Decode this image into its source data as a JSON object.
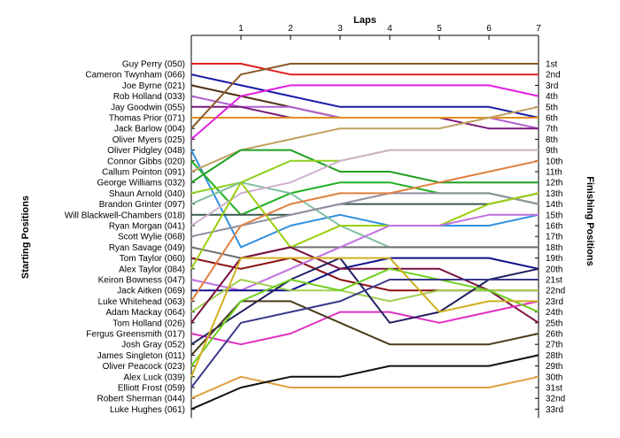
{
  "chart_data": {
    "type": "line",
    "title": "",
    "xlabel": "Laps",
    "ylabel_left": "Starting Positions",
    "ylabel_right": "Finishing Positions",
    "x": [
      0,
      1,
      2,
      3,
      4,
      5,
      6,
      7
    ],
    "x_tick_labels": [
      "1",
      "2",
      "3",
      "4",
      "5",
      "6",
      "7"
    ],
    "position_count": 33,
    "grid": false,
    "finishing_labels": [
      "1st",
      "2nd",
      "3rd",
      "4th",
      "5th",
      "6th",
      "7th",
      "8th",
      "9th",
      "10th",
      "11th",
      "12th",
      "13th",
      "14th",
      "15th",
      "16th",
      "17th",
      "18th",
      "19th",
      "20th",
      "21st",
      "22nd",
      "23rd",
      "24th",
      "25th",
      "26th",
      "27th",
      "28th",
      "29th",
      "30th",
      "31st",
      "32nd",
      "33rd"
    ],
    "series": [
      {
        "name": "Guy Perry (050)",
        "color": "#e02020",
        "values": [
          1,
          1,
          2,
          2,
          2,
          2,
          2,
          2
        ]
      },
      {
        "name": "Cameron Twynham (066)",
        "color": "#1a1aa8",
        "values": [
          2,
          3,
          4,
          5,
          5,
          5,
          5,
          6
        ]
      },
      {
        "name": "Joe Byrne (021)",
        "color": "#4d2e12",
        "values": [
          3,
          4,
          5,
          6,
          6,
          6,
          6,
          6
        ]
      },
      {
        "name": "Rob Holland (033)",
        "color": "#b060d0",
        "values": [
          4,
          5,
          5,
          6,
          6,
          6,
          6,
          7
        ]
      },
      {
        "name": "Jay Goodwin (055)",
        "color": "#7a1a7a",
        "values": [
          5,
          5,
          6,
          6,
          6,
          6,
          7,
          7
        ]
      },
      {
        "name": "Thomas Prior (071)",
        "color": "#e09020",
        "values": [
          6,
          6,
          6,
          6,
          6,
          6,
          6,
          6
        ]
      },
      {
        "name": "Jack Barlow (004)",
        "color": "#8a5a2a",
        "values": [
          7,
          2,
          1,
          1,
          1,
          1,
          1,
          1
        ]
      },
      {
        "name": "Oliver Myers (025)",
        "color": "#e020e0",
        "values": [
          8,
          4,
          3,
          3,
          3,
          3,
          3,
          4
        ]
      },
      {
        "name": "Oliver Pidgley (048)",
        "color": "#3090e0",
        "values": [
          9,
          18,
          16,
          15,
          16,
          16,
          16,
          15
        ]
      },
      {
        "name": "Connor Gibbs (020)",
        "color": "#20b020",
        "values": [
          10,
          15,
          13,
          12,
          12,
          13,
          13,
          14
        ]
      },
      {
        "name": "Callum Pointon (091)",
        "color": "#c0a060",
        "values": [
          11,
          9,
          8,
          7,
          7,
          7,
          6,
          5
        ]
      },
      {
        "name": "George Williams (032)",
        "color": "#20a020",
        "values": [
          12,
          9,
          9,
          11,
          11,
          12,
          12,
          12
        ]
      },
      {
        "name": "Shaun Arnold (040)",
        "color": "#90d020",
        "values": [
          13,
          12,
          10,
          10,
          9,
          9,
          9,
          9
        ]
      },
      {
        "name": "Brandon Grinter (097)",
        "color": "#80c0a0",
        "values": [
          14,
          12,
          13,
          16,
          18,
          18,
          18,
          18
        ]
      },
      {
        "name": "Will Blackwell-Chambers (018)",
        "color": "#3a5a50",
        "values": [
          15,
          15,
          15,
          14,
          14,
          14,
          14,
          13
        ]
      },
      {
        "name": "Ryan Morgan (041)",
        "color": "#d0b0d0",
        "values": [
          16,
          13,
          12,
          10,
          9,
          9,
          9,
          9
        ]
      },
      {
        "name": "Scott Wylie (068)",
        "color": "#9090a0",
        "values": [
          17,
          16,
          15,
          14,
          13,
          13,
          13,
          14
        ]
      },
      {
        "name": "Ryan Savage (049)",
        "color": "#707070",
        "values": [
          18,
          19,
          18,
          18,
          18,
          18,
          18,
          18
        ]
      },
      {
        "name": "Tom Taylor (060)",
        "color": "#8a1010",
        "values": [
          19,
          20,
          19,
          21,
          22,
          22,
          22,
          22
        ]
      },
      {
        "name": "Alex Taylor (084)",
        "color": "#9ad010",
        "values": [
          20,
          12,
          18,
          16,
          16,
          16,
          14,
          13
        ]
      },
      {
        "name": "Keiron Bowness (047)",
        "color": "#c070e0",
        "values": [
          21,
          22,
          20,
          18,
          16,
          16,
          15,
          15
        ]
      },
      {
        "name": "Jack Aitken (069)",
        "color": "#10108a",
        "values": [
          22,
          22,
          22,
          20,
          19,
          19,
          19,
          20
        ]
      },
      {
        "name": "Luke Whitehead (063)",
        "color": "#e08040",
        "values": [
          23,
          16,
          14,
          13,
          13,
          12,
          11,
          10
        ]
      },
      {
        "name": "Adam Mackay (064)",
        "color": "#a0d050",
        "values": [
          24,
          21,
          22,
          22,
          23,
          22,
          22,
          22
        ]
      },
      {
        "name": "Tom Holland (026)",
        "color": "#7a1040",
        "values": [
          25,
          19,
          18,
          20,
          20,
          20,
          22,
          25
        ]
      },
      {
        "name": "Fergus Greensmith (017)",
        "color": "#e030c0",
        "values": [
          26,
          27,
          26,
          24,
          24,
          25,
          24,
          23
        ]
      },
      {
        "name": "Josh Gray (052)",
        "color": "#202060",
        "values": [
          27,
          24,
          21,
          19,
          25,
          24,
          21,
          20
        ]
      },
      {
        "name": "James Singleton (011)",
        "color": "#4a3a1a",
        "values": [
          28,
          23,
          23,
          25,
          27,
          27,
          27,
          26
        ]
      },
      {
        "name": "Oliver Peacock (023)",
        "color": "#70d020",
        "values": [
          29,
          23,
          21,
          22,
          20,
          21,
          22,
          24
        ]
      },
      {
        "name": "Alex Luck (039)",
        "color": "#d0b020",
        "values": [
          30,
          19,
          19,
          19,
          19,
          24,
          23,
          23
        ]
      },
      {
        "name": "Elliott Frost (059)",
        "color": "#3a3a8a",
        "values": [
          31,
          25,
          24,
          23,
          21,
          21,
          21,
          21
        ]
      },
      {
        "name": "Robert Sherman (044)",
        "color": "#e0a040",
        "values": [
          32,
          30,
          31,
          31,
          31,
          31,
          31,
          30
        ]
      },
      {
        "name": "Luke Hughes (061)",
        "color": "#101010",
        "values": [
          33,
          31,
          30,
          30,
          29,
          29,
          29,
          28
        ]
      }
    ]
  }
}
